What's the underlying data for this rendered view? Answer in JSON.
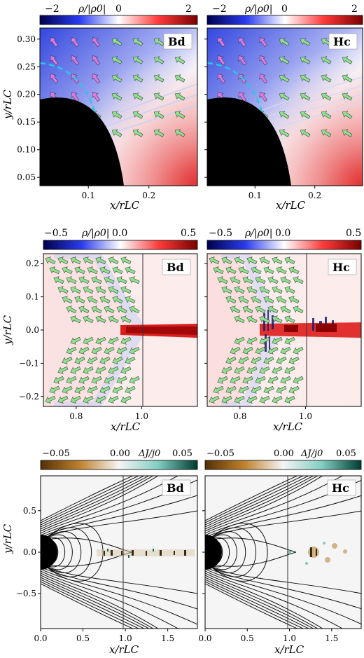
{
  "chart_data": [
    {
      "type": "heatmap",
      "row": "top",
      "panels": [
        "Bd",
        "Hc"
      ],
      "colorbar": {
        "label": "ρ/|ρ0|",
        "ticks": [
          "−2",
          "0",
          "2"
        ],
        "range": [
          -2,
          2
        ],
        "colormap": "seismic"
      },
      "xlabel": "x/rLC",
      "ylabel": "y/rLC",
      "xlim": [
        0.02,
        0.28
      ],
      "ylim": [
        0.035,
        0.32
      ],
      "xticks": [
        0.1,
        0.2
      ],
      "xtick_labels": [
        "0.1",
        "0.2"
      ],
      "yticks": [
        0.05,
        0.1,
        0.15,
        0.2,
        0.25,
        0.3
      ],
      "ytick_labels": [
        "0.05",
        "0.10",
        "0.15",
        "0.20",
        "0.25",
        "0.30"
      ],
      "star_radius": 0.19,
      "dashed_circle_radius": 0.24
    },
    {
      "type": "heatmap",
      "row": "middle",
      "panels": [
        "Bd",
        "Hc"
      ],
      "colorbar": {
        "label": "ρ/|ρ0|",
        "ticks": [
          "−0.5",
          "0.0",
          "0.5"
        ],
        "range": [
          -0.5,
          0.5
        ],
        "colormap": "seismic"
      },
      "xlabel": "x/rLC",
      "ylabel": "y/rLC",
      "xlim": [
        0.7,
        1.17
      ],
      "ylim": [
        -0.23,
        0.23
      ],
      "xticks": [
        0.8,
        1.0
      ],
      "xtick_labels": [
        "0.8",
        "1.0"
      ],
      "yticks": [
        -0.2,
        -0.1,
        0.0,
        0.1,
        0.2
      ],
      "ytick_labels": [
        "−0.2",
        "−0.1",
        "0.0",
        "0.1",
        "0.2"
      ],
      "light_cylinder": 1.0
    },
    {
      "type": "heatmap",
      "row": "bottom",
      "panels": [
        "Bd",
        "Hc"
      ],
      "colorbar": {
        "label": "ΔJ/j0",
        "ticks": [
          "−0.05",
          "0.00",
          "0.05"
        ],
        "range": [
          -0.05,
          0.05
        ],
        "colormap": "BrBG"
      },
      "xlabel": "x/rLC",
      "ylabel": "y/rLC",
      "xlim": [
        0.0,
        1.85
      ],
      "ylim": [
        -0.92,
        0.92
      ],
      "xticks": [
        0.0,
        0.5,
        1.0,
        1.5
      ],
      "xtick_labels": [
        "0.0",
        "0.5",
        "1.0",
        "1.5"
      ],
      "yticks": [
        -0.5,
        0.0,
        0.5
      ],
      "ytick_labels": [
        "−0.5",
        "0.0",
        "0.5"
      ],
      "light_cylinder": 1.0,
      "star_radius": 0.19
    }
  ],
  "colors": {
    "positive": "#b40426",
    "negative": "#1a2fb5",
    "neutral": "#f7f7f7",
    "brown": "#8c510a",
    "teal": "#01665e",
    "arrow_green": "#8fe08f",
    "arrow_magenta": "#d77ae6",
    "dashed_cyan": "#2ec4e6"
  }
}
